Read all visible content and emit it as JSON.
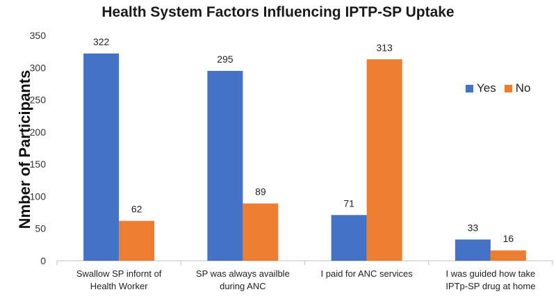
{
  "chart_data": {
    "type": "bar",
    "title": "Health System Factors Influencing IPTP-SP Uptake",
    "xlabel": "",
    "ylabel": "Nmber  of Participants",
    "ylim": [
      0,
      350
    ],
    "yticks": [
      0,
      50,
      100,
      150,
      200,
      250,
      300,
      350
    ],
    "categories": [
      [
        "Swallow SP infornt of",
        "Health Worker"
      ],
      [
        "SP was always availble",
        "during ANC"
      ],
      [
        "I paid for ANC services"
      ],
      [
        "I was guided how take",
        "IPTp-SP drug at home"
      ]
    ],
    "series": [
      {
        "name": "Yes",
        "color": "#4472C4",
        "values": [
          322,
          295,
          71,
          33
        ]
      },
      {
        "name": "No",
        "color": "#ED7D31",
        "values": [
          62,
          89,
          313,
          16
        ]
      }
    ],
    "grid": false,
    "legend_position": "right"
  }
}
